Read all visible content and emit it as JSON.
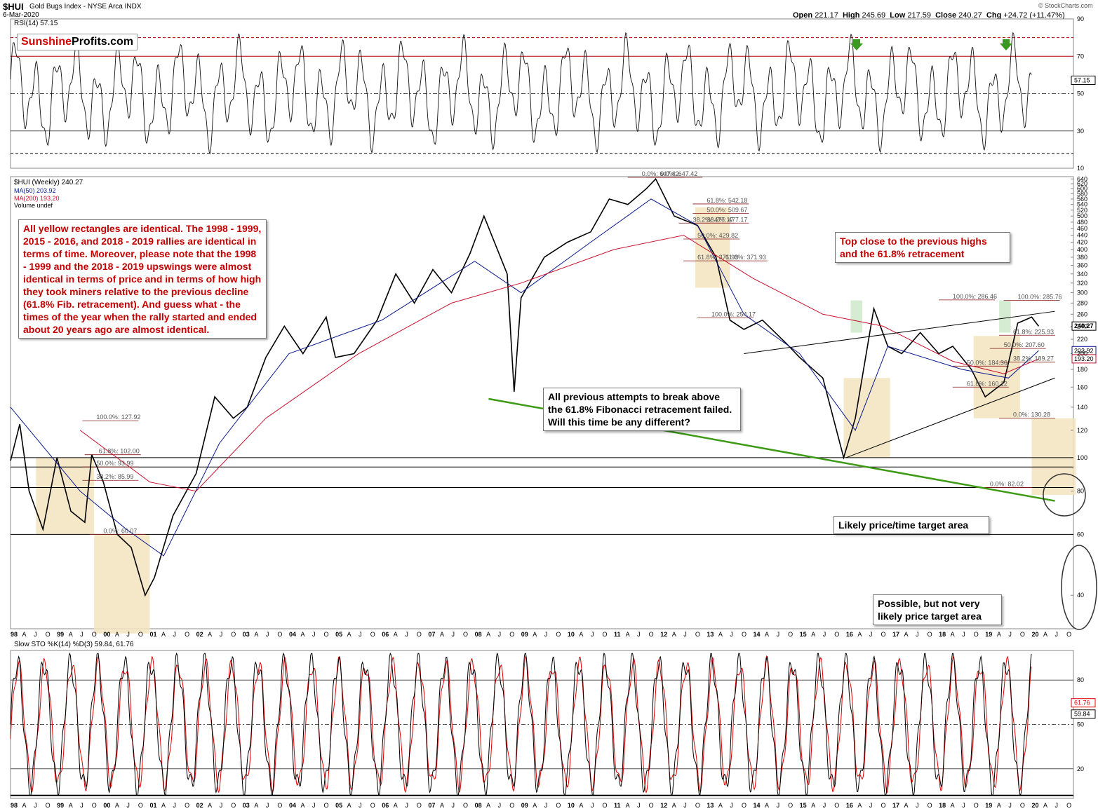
{
  "header": {
    "symbol": "$HUI",
    "name": "Gold Bugs Index - NYSE Arca INDX",
    "date": "6-Mar-2020",
    "open_label": "Open",
    "open": "221.17",
    "high_label": "High",
    "high": "245.69",
    "low_label": "Low",
    "low": "217.59",
    "close_label": "Close",
    "close": "240.27",
    "chg_label": "Chg",
    "chg": "+24.72 (+11.47%)",
    "credit": "© StockCharts.com"
  },
  "logo": {
    "part1": "Sunshine",
    "part2": "Profits.com"
  },
  "legends": {
    "rsi": "RSI(14) 57.15",
    "price": "$HUI (Weekly) 240.27",
    "ma50": "MA(50) 203.92",
    "ma200": "MA(200) 193.20",
    "volume": "Volume undef",
    "sto": "Slow STO %K(14) %D(3) 59.84, 61.76"
  },
  "annotations": {
    "main": "All yellow rectangles are identical. The 1998 - 1999, 2015 - 2016, and 2018 - 2019 rallies are identical in terms of time. Moreover, please note that the 1998 - 1999 and the 2018 - 2019 upswings were almost identical in terms of price and in terms of how high they took miners relative to the previous decline (61.8% Fib. retracement). And guess what - the times of the year when the rally started and ended about 20 years ago are almost identical.",
    "fib": "All previous attempts to break above the 61.8% Fibonacci retracement failed. Will this time be any different?",
    "top": "Top close to the previous highs and the 61.8% retracement",
    "likely": "Likely price/time target area",
    "possible": "Possible, but not very likely price target area"
  },
  "chart_data": [
    {
      "type": "line",
      "panel": "rsi",
      "title": "RSI(14) 57.15",
      "y_ticks": [
        10,
        30,
        50,
        70,
        90
      ],
      "ylim": [
        10,
        90
      ],
      "reference_lines": [
        30,
        50,
        70,
        80,
        18
      ],
      "current_value": "57.15",
      "colors": {
        "line": "#111111",
        "overbought": "#2e6b2e",
        "oversold": "#7a4040",
        "reference": "#b00000"
      }
    },
    {
      "type": "line",
      "panel": "price",
      "title": "$HUI (Weekly) 240.27",
      "yscale": "log",
      "y_ticks": [
        40,
        60,
        80,
        100,
        120,
        140,
        160,
        180,
        200,
        220,
        240,
        260,
        280,
        300,
        320,
        340,
        360,
        380,
        400,
        420,
        440,
        460,
        480,
        500,
        520,
        540,
        560,
        580,
        600,
        620,
        640
      ],
      "ylim": [
        32,
        650
      ],
      "x_ticks": [
        "98",
        "A",
        "J",
        "O",
        "99",
        "A",
        "J",
        "O",
        "00",
        "A",
        "J",
        "O",
        "01",
        "A",
        "J",
        "O",
        "02",
        "A",
        "J",
        "O",
        "03",
        "A",
        "J",
        "O",
        "04",
        "A",
        "J",
        "O",
        "05",
        "A",
        "J",
        "O",
        "06",
        "A",
        "J",
        "O",
        "07",
        "A",
        "J",
        "O",
        "08",
        "A",
        "J",
        "O",
        "09",
        "A",
        "J",
        "O",
        "10",
        "A",
        "J",
        "O",
        "11",
        "A",
        "J",
        "O",
        "12",
        "A",
        "J",
        "O",
        "13",
        "A",
        "J",
        "O",
        "14",
        "A",
        "J",
        "O",
        "15",
        "A",
        "J",
        "O",
        "16",
        "A",
        "J",
        "O",
        "17",
        "A",
        "J",
        "O",
        "18",
        "A",
        "J",
        "O",
        "19",
        "A",
        "J",
        "O",
        "20",
        "A",
        "J",
        "O"
      ],
      "series": [
        {
          "name": "$HUI (Weekly)",
          "color": "#000000",
          "x": [
            1998.0,
            1998.2,
            1998.4,
            1998.7,
            1999.0,
            1999.3,
            1999.6,
            1999.75,
            2000.0,
            2000.3,
            2000.6,
            2000.9,
            2001.1,
            2001.5,
            2002.0,
            2002.4,
            2002.8,
            2003.1,
            2003.5,
            2003.9,
            2004.3,
            2004.8,
            2005.0,
            2005.4,
            2005.9,
            2006.3,
            2006.7,
            2007.1,
            2007.5,
            2007.9,
            2008.2,
            2008.7,
            2008.85,
            2009.0,
            2009.5,
            2010.0,
            2010.5,
            2010.9,
            2011.3,
            2011.7,
            2011.9,
            2012.3,
            2012.8,
            2013.2,
            2013.5,
            2013.8,
            2014.2,
            2014.7,
            2015.0,
            2015.5,
            2015.95,
            2016.2,
            2016.6,
            2016.9,
            2017.2,
            2017.6,
            2018.0,
            2018.3,
            2018.7,
            2019.0,
            2019.4,
            2019.7,
            2020.0,
            2020.15
          ],
          "values": [
            98,
            125,
            80,
            62,
            100,
            70,
            65,
            102,
            85,
            60,
            55,
            40,
            45,
            68,
            90,
            150,
            130,
            140,
            195,
            240,
            200,
            255,
            195,
            200,
            250,
            340,
            280,
            350,
            300,
            390,
            500,
            340,
            155,
            290,
            380,
            420,
            450,
            560,
            540,
            600,
            640,
            500,
            470,
            380,
            250,
            235,
            250,
            215,
            195,
            170,
            100,
            130,
            270,
            210,
            200,
            230,
            200,
            210,
            180,
            150,
            165,
            245,
            255,
            240
          ]
        },
        {
          "name": "MA(50)",
          "color": "#0a1a8c",
          "value_current": "203.92"
        },
        {
          "name": "MA(200)",
          "color": "#c8102e",
          "value_current": "193.20"
        }
      ],
      "price_labels": [
        "240.27",
        "203.92",
        "193.20"
      ],
      "fib_labels": [
        "0.0%: 647.42",
        "0.0%: 647.42",
        "61.8%: 542.18",
        "50.0%: 509.67",
        "38.2%: 477.17",
        "38.2%: 477.17",
        "50.0%: 429.82",
        "61.8%: 371.93",
        "61.8%: 371.93",
        "100.0%: 254.17",
        "100.0%: 127.92",
        "61.8%: 102.00",
        "50.0%: 93.99",
        "38.2%: 85.99",
        "0.0%: 60.07",
        "100.0%: 286.46",
        "100.0%: 285.76",
        "61.8%: 225.93",
        "50.0%: 207.60",
        "38.2%: 189.27",
        "50.0%: 184.36",
        "61.8%: 160.12",
        "0.0%: 130.28",
        "0.0%: 82.02"
      ]
    },
    {
      "type": "line",
      "panel": "stochastic",
      "title": "Slow STO %K(14) %D(3) 59.84, 61.76",
      "y_ticks": [
        20,
        50,
        80
      ],
      "ylim": [
        0,
        100
      ],
      "current_values": [
        "61.76",
        "59.84"
      ],
      "series": [
        {
          "name": "%K(14)",
          "color": "#000000"
        },
        {
          "name": "%D(3)",
          "color": "#e00000"
        }
      ]
    }
  ]
}
